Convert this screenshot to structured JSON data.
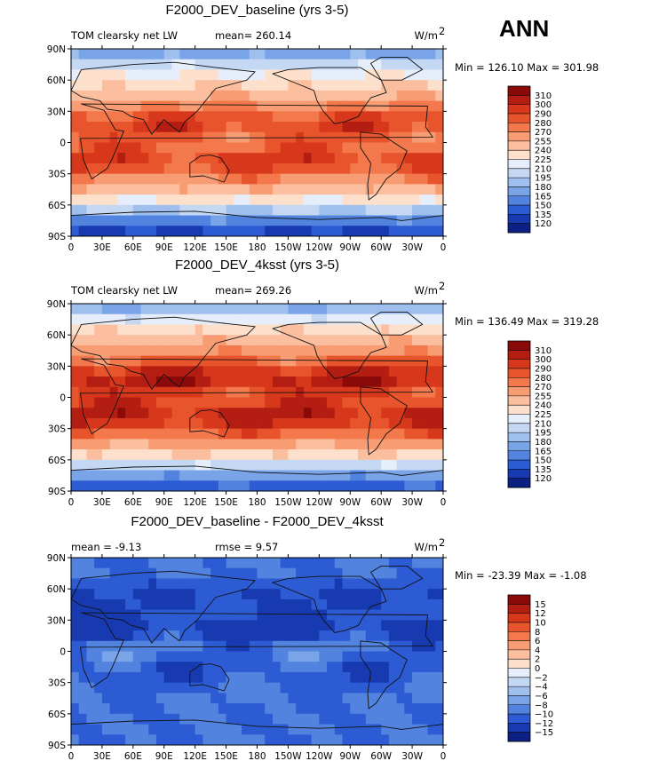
{
  "page": {
    "season": "ANN"
  },
  "chart_data": [
    {
      "type": "heatmap",
      "title": "F2000_DEV_baseline (yrs 3-5)",
      "left_label": "TOM clearsky net LW",
      "stat_label": "mean= 260.14",
      "units_label": "W/m",
      "units_exp": "2",
      "minmax_label": "Min = 126.10 Max = 301.98",
      "min": 126.1,
      "max": 301.98,
      "mean": 260.14,
      "x_ticks": [
        "0",
        "30E",
        "60E",
        "90E",
        "120E",
        "150E",
        "180",
        "150W",
        "120W",
        "90W",
        "60W",
        "30W",
        "0"
      ],
      "y_ticks": [
        "90N",
        "60N",
        "30N",
        "0",
        "30S",
        "60S",
        "90S"
      ],
      "latitudes": [
        85,
        75,
        65,
        55,
        45,
        35,
        25,
        15,
        5,
        -5,
        -15,
        -25,
        -35,
        -45,
        -55,
        -65,
        -75,
        -85
      ],
      "zonal_mean": [
        175,
        205,
        225,
        238,
        250,
        268,
        285,
        290,
        282,
        282,
        290,
        285,
        270,
        250,
        228,
        195,
        160,
        135
      ],
      "levels": [
        "310",
        "300",
        "290",
        "280",
        "270",
        "255",
        "240",
        "225",
        "210",
        "195",
        "180",
        "165",
        "150",
        "135",
        "120"
      ],
      "colors": [
        "#8a0a0a",
        "#b31d12",
        "#d7381c",
        "#e8552c",
        "#f3794c",
        "#f89c74",
        "#fbbf9f",
        "#fde0cc",
        "#e5eefa",
        "#c4d8f4",
        "#9fc0ee",
        "#7aa4e8",
        "#5183df",
        "#2c5bd4",
        "#183ab0",
        "#0c1f82"
      ]
    },
    {
      "type": "heatmap",
      "title": "F2000_DEV_4ksst (yrs 3-5)",
      "left_label": "TOM clearsky net LW",
      "stat_label": "mean= 269.26",
      "units_label": "W/m",
      "units_exp": "2",
      "minmax_label": "Min = 136.49 Max = 319.28",
      "min": 136.49,
      "max": 319.28,
      "mean": 269.26,
      "x_ticks": [
        "0",
        "30E",
        "60E",
        "90E",
        "120E",
        "150E",
        "180",
        "150W",
        "120W",
        "90W",
        "60W",
        "30W",
        "0"
      ],
      "y_ticks": [
        "90N",
        "60N",
        "30N",
        "0",
        "30S",
        "60S",
        "90S"
      ],
      "latitudes": [
        85,
        75,
        65,
        55,
        45,
        35,
        25,
        15,
        5,
        -5,
        -15,
        -25,
        -35,
        -45,
        -55,
        -65,
        -75,
        -85
      ],
      "zonal_mean": [
        185,
        215,
        236,
        250,
        262,
        280,
        298,
        302,
        292,
        292,
        300,
        296,
        280,
        260,
        238,
        205,
        170,
        145
      ],
      "levels": [
        "310",
        "300",
        "290",
        "280",
        "270",
        "255",
        "240",
        "225",
        "210",
        "195",
        "180",
        "165",
        "150",
        "135",
        "120"
      ],
      "colors": [
        "#8a0a0a",
        "#b31d12",
        "#d7381c",
        "#e8552c",
        "#f3794c",
        "#f89c74",
        "#fbbf9f",
        "#fde0cc",
        "#e5eefa",
        "#c4d8f4",
        "#9fc0ee",
        "#7aa4e8",
        "#5183df",
        "#2c5bd4",
        "#183ab0",
        "#0c1f82"
      ]
    },
    {
      "type": "heatmap",
      "title": "F2000_DEV_baseline - F2000_DEV_4ksst",
      "left_label": "mean =   -9.13",
      "stat_label": "rmse =    9.57",
      "units_label": "W/m",
      "units_exp": "2",
      "minmax_label": "Min = -23.39 Max =  -1.08",
      "min": -23.39,
      "max": -1.08,
      "mean": -9.13,
      "rmse": 9.57,
      "x_ticks": [
        "0",
        "30E",
        "60E",
        "90E",
        "120E",
        "150E",
        "180",
        "150W",
        "120W",
        "90W",
        "60W",
        "30W",
        "0"
      ],
      "y_ticks": [
        "90N",
        "60N",
        "30N",
        "0",
        "30S",
        "60S",
        "90S"
      ],
      "latitudes": [
        85,
        75,
        65,
        55,
        45,
        35,
        25,
        15,
        5,
        -5,
        -15,
        -25,
        -35,
        -45,
        -55,
        -65,
        -75,
        -85
      ],
      "zonal_mean": [
        -10,
        -10,
        -11,
        -12,
        -12,
        -12,
        -13,
        -12,
        -10,
        -10,
        -11,
        -11,
        -10,
        -10,
        -10,
        -10,
        -10,
        -10
      ],
      "levels": [
        "15",
        "12",
        "10",
        "8",
        "6",
        "4",
        "2",
        "0",
        "−2",
        "−4",
        "−6",
        "−8",
        "−10",
        "−12",
        "−15"
      ],
      "colors": [
        "#8a0a0a",
        "#b31d12",
        "#d7381c",
        "#e8552c",
        "#f3794c",
        "#f89c74",
        "#fbbf9f",
        "#fde0cc",
        "#e5eefa",
        "#c4d8f4",
        "#9fc0ee",
        "#7aa4e8",
        "#5183df",
        "#2c5bd4",
        "#183ab0",
        "#0c1f82"
      ]
    }
  ]
}
